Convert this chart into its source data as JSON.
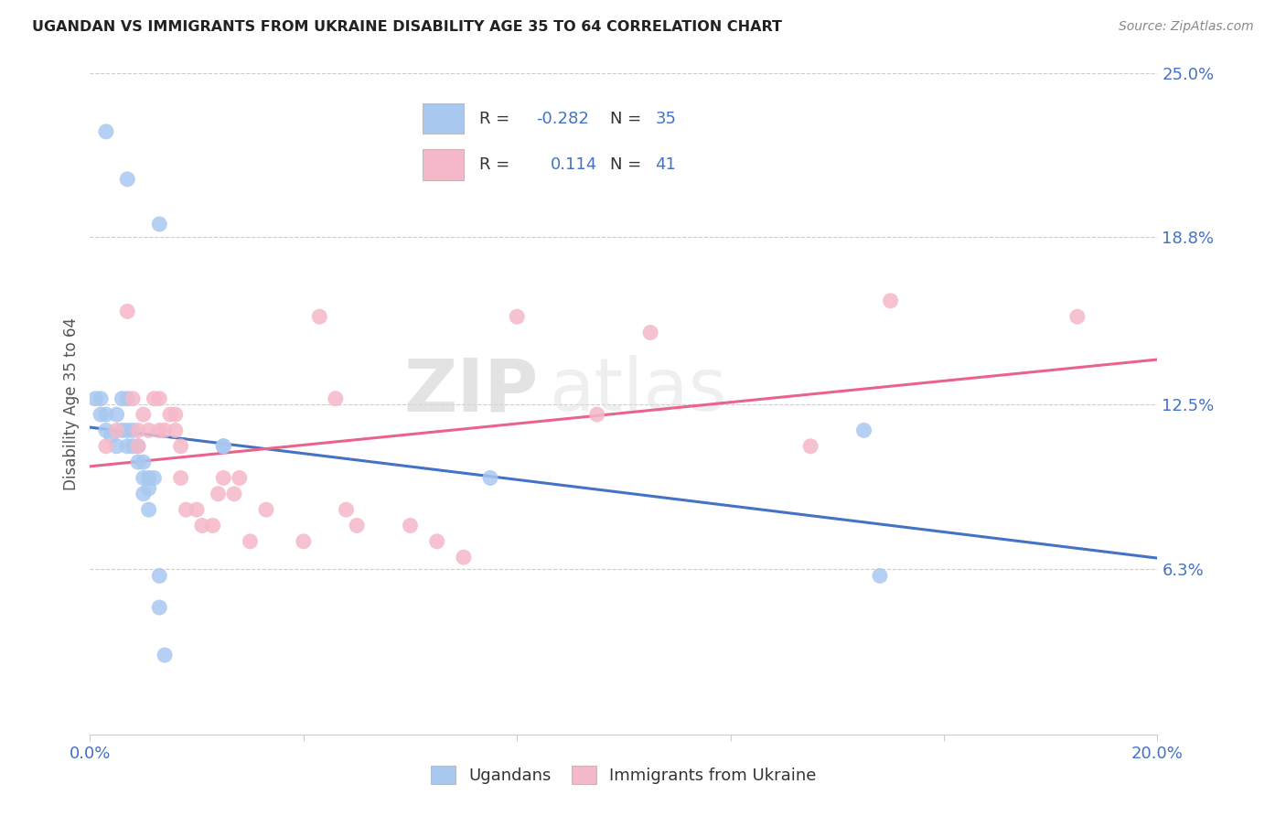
{
  "title": "UGANDAN VS IMMIGRANTS FROM UKRAINE DISABILITY AGE 35 TO 64 CORRELATION CHART",
  "source": "Source: ZipAtlas.com",
  "ylabel": "Disability Age 35 to 64",
  "xlim": [
    0.0,
    0.2
  ],
  "ylim": [
    0.0,
    0.25
  ],
  "xticks": [
    0.0,
    0.04,
    0.08,
    0.12,
    0.16,
    0.2
  ],
  "xticklabels": [
    "0.0%",
    "",
    "",
    "",
    "",
    "20.0%"
  ],
  "ytick_positions": [
    0.0,
    0.0625,
    0.125,
    0.188,
    0.25
  ],
  "yticklabels": [
    "",
    "6.3%",
    "12.5%",
    "18.8%",
    "25.0%"
  ],
  "ugandan_color": "#a8c8f0",
  "ukraine_color": "#f5b8c8",
  "ugandan_line_color": "#4472c4",
  "ukraine_line_color": "#e8648a",
  "legend_R_ugandan": "-0.282",
  "legend_N_ugandan": "35",
  "legend_R_ukraine": "0.114",
  "legend_N_ukraine": "41",
  "watermark_1": "ZIP",
  "watermark_2": "atlas",
  "ugandan_x": [
    0.003,
    0.007,
    0.013,
    0.001,
    0.002,
    0.002,
    0.003,
    0.003,
    0.004,
    0.005,
    0.005,
    0.006,
    0.006,
    0.007,
    0.007,
    0.007,
    0.008,
    0.008,
    0.009,
    0.009,
    0.01,
    0.01,
    0.01,
    0.011,
    0.011,
    0.011,
    0.012,
    0.013,
    0.013,
    0.014,
    0.025,
    0.025,
    0.075,
    0.145,
    0.148
  ],
  "ugandan_y": [
    0.228,
    0.21,
    0.193,
    0.127,
    0.127,
    0.121,
    0.121,
    0.115,
    0.113,
    0.121,
    0.109,
    0.127,
    0.115,
    0.127,
    0.115,
    0.109,
    0.115,
    0.109,
    0.109,
    0.103,
    0.103,
    0.097,
    0.091,
    0.097,
    0.093,
    0.085,
    0.097,
    0.048,
    0.06,
    0.03,
    0.109,
    0.109,
    0.097,
    0.115,
    0.06
  ],
  "ukraine_x": [
    0.003,
    0.005,
    0.007,
    0.008,
    0.009,
    0.009,
    0.01,
    0.011,
    0.012,
    0.013,
    0.013,
    0.014,
    0.015,
    0.016,
    0.016,
    0.017,
    0.017,
    0.018,
    0.02,
    0.021,
    0.023,
    0.024,
    0.025,
    0.027,
    0.028,
    0.03,
    0.033,
    0.04,
    0.043,
    0.046,
    0.048,
    0.05,
    0.06,
    0.065,
    0.07,
    0.08,
    0.095,
    0.105,
    0.135,
    0.15,
    0.185
  ],
  "ukraine_y": [
    0.109,
    0.115,
    0.16,
    0.127,
    0.115,
    0.109,
    0.121,
    0.115,
    0.127,
    0.127,
    0.115,
    0.115,
    0.121,
    0.121,
    0.115,
    0.109,
    0.097,
    0.085,
    0.085,
    0.079,
    0.079,
    0.091,
    0.097,
    0.091,
    0.097,
    0.073,
    0.085,
    0.073,
    0.158,
    0.127,
    0.085,
    0.079,
    0.079,
    0.073,
    0.067,
    0.158,
    0.121,
    0.152,
    0.109,
    0.164,
    0.158
  ]
}
